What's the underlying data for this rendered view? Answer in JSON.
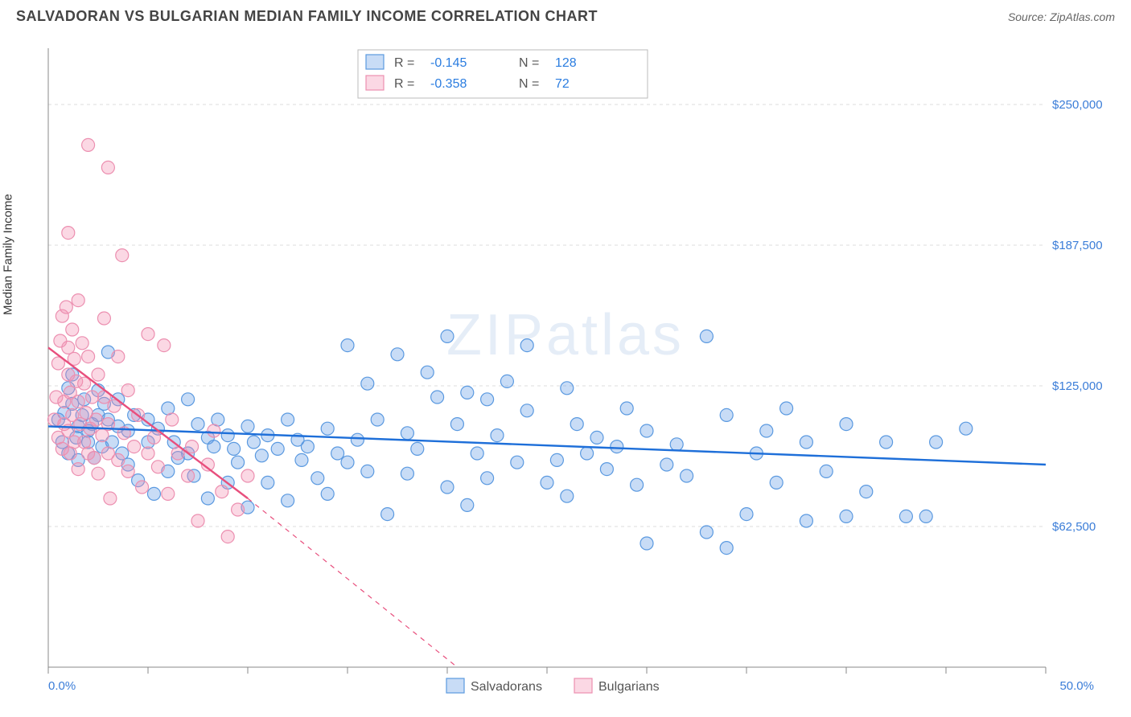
{
  "header": {
    "title": "SALVADORAN VS BULGARIAN MEDIAN FAMILY INCOME CORRELATION CHART",
    "source": "Source: ZipAtlas.com"
  },
  "watermark": "ZIPatlas",
  "chart": {
    "type": "scatter",
    "ylabel": "Median Family Income",
    "xlim": [
      0,
      50
    ],
    "ylim": [
      0,
      275000
    ],
    "x_ticks_minor_step": 5,
    "x_tick_labels": {
      "0": "0.0%",
      "50": "50.0%"
    },
    "y_ticks": [
      62500,
      125000,
      187500,
      250000
    ],
    "y_tick_labels": [
      "$62,500",
      "$125,000",
      "$187,500",
      "$250,000"
    ],
    "grid_color": "#dddddd",
    "axis_color": "#888888",
    "background_color": "#ffffff",
    "tick_label_color": "#3b7dd8",
    "axis_label_color": "#333333",
    "axis_label_fontsize": 15,
    "tick_label_fontsize": 15,
    "marker_radius": 8,
    "marker_stroke_width": 1.2,
    "trendline_width": 2.4,
    "series": [
      {
        "name": "Salvadorans",
        "fill": "rgba(96,156,230,0.35)",
        "stroke": "#5a99e0",
        "trend_stroke": "#1e6fd9",
        "R": "-0.145",
        "N": "128",
        "trendline": {
          "x1": 0,
          "y1": 107000,
          "x2": 50,
          "y2": 90000
        },
        "points": [
          [
            0.5,
            110000
          ],
          [
            0.7,
            100000
          ],
          [
            0.8,
            113000
          ],
          [
            1.0,
            124000
          ],
          [
            1.0,
            95000
          ],
          [
            1.2,
            117000
          ],
          [
            1.2,
            130000
          ],
          [
            1.4,
            102000
          ],
          [
            1.5,
            107000
          ],
          [
            1.5,
            92000
          ],
          [
            1.7,
            112000
          ],
          [
            1.8,
            119000
          ],
          [
            2.0,
            105000
          ],
          [
            2.0,
            100000
          ],
          [
            2.2,
            108000
          ],
          [
            2.3,
            93000
          ],
          [
            2.5,
            112000
          ],
          [
            2.5,
            123000
          ],
          [
            2.7,
            98000
          ],
          [
            2.8,
            117000
          ],
          [
            3.0,
            110000
          ],
          [
            3.0,
            140000
          ],
          [
            3.2,
            100000
          ],
          [
            3.5,
            107000
          ],
          [
            3.5,
            119000
          ],
          [
            3.7,
            95000
          ],
          [
            4.0,
            90000
          ],
          [
            4.0,
            105000
          ],
          [
            4.3,
            112000
          ],
          [
            4.5,
            83000
          ],
          [
            5.0,
            100000
          ],
          [
            5.0,
            110000
          ],
          [
            5.3,
            77000
          ],
          [
            5.5,
            106000
          ],
          [
            6.0,
            115000
          ],
          [
            6.0,
            87000
          ],
          [
            6.3,
            100000
          ],
          [
            6.5,
            93000
          ],
          [
            7.0,
            119000
          ],
          [
            7.0,
            95000
          ],
          [
            7.3,
            85000
          ],
          [
            7.5,
            108000
          ],
          [
            8.0,
            102000
          ],
          [
            8.0,
            75000
          ],
          [
            8.3,
            98000
          ],
          [
            8.5,
            110000
          ],
          [
            9.0,
            103000
          ],
          [
            9.0,
            82000
          ],
          [
            9.3,
            97000
          ],
          [
            9.5,
            91000
          ],
          [
            10.0,
            107000
          ],
          [
            10.0,
            71000
          ],
          [
            10.3,
            100000
          ],
          [
            10.7,
            94000
          ],
          [
            11.0,
            82000
          ],
          [
            11.0,
            103000
          ],
          [
            11.5,
            97000
          ],
          [
            12.0,
            74000
          ],
          [
            12.0,
            110000
          ],
          [
            12.5,
            101000
          ],
          [
            12.7,
            92000
          ],
          [
            13.0,
            98000
          ],
          [
            13.5,
            84000
          ],
          [
            14.0,
            106000
          ],
          [
            14.0,
            77000
          ],
          [
            14.5,
            95000
          ],
          [
            15.0,
            143000
          ],
          [
            15.0,
            91000
          ],
          [
            15.5,
            101000
          ],
          [
            16.0,
            87000
          ],
          [
            16.0,
            126000
          ],
          [
            16.5,
            110000
          ],
          [
            17.0,
            68000
          ],
          [
            17.5,
            139000
          ],
          [
            18.0,
            104000
          ],
          [
            18.0,
            86000
          ],
          [
            18.5,
            97000
          ],
          [
            19.0,
            131000
          ],
          [
            19.5,
            120000
          ],
          [
            20.0,
            80000
          ],
          [
            20.0,
            147000
          ],
          [
            20.5,
            108000
          ],
          [
            21.0,
            122000
          ],
          [
            21.0,
            72000
          ],
          [
            21.5,
            95000
          ],
          [
            22.0,
            119000
          ],
          [
            22.0,
            84000
          ],
          [
            22.5,
            103000
          ],
          [
            23.0,
            127000
          ],
          [
            23.5,
            91000
          ],
          [
            24.0,
            114000
          ],
          [
            24.0,
            143000
          ],
          [
            25.0,
            82000
          ],
          [
            25.5,
            92000
          ],
          [
            26.0,
            124000
          ],
          [
            26.0,
            76000
          ],
          [
            26.5,
            108000
          ],
          [
            27.0,
            95000
          ],
          [
            27.5,
            102000
          ],
          [
            28.0,
            88000
          ],
          [
            28.5,
            98000
          ],
          [
            29.0,
            115000
          ],
          [
            29.5,
            81000
          ],
          [
            30.0,
            105000
          ],
          [
            30.0,
            55000
          ],
          [
            31.0,
            90000
          ],
          [
            31.5,
            99000
          ],
          [
            32.0,
            85000
          ],
          [
            33.0,
            147000
          ],
          [
            33.0,
            60000
          ],
          [
            34.0,
            112000
          ],
          [
            34.0,
            53000
          ],
          [
            35.0,
            68000
          ],
          [
            35.5,
            95000
          ],
          [
            36.0,
            105000
          ],
          [
            36.5,
            82000
          ],
          [
            37.0,
            115000
          ],
          [
            38.0,
            65000
          ],
          [
            38.0,
            100000
          ],
          [
            39.0,
            87000
          ],
          [
            40.0,
            108000
          ],
          [
            40.0,
            67000
          ],
          [
            41.0,
            78000
          ],
          [
            42.0,
            100000
          ],
          [
            43.0,
            67000
          ],
          [
            44.0,
            67000
          ],
          [
            44.5,
            100000
          ],
          [
            46.0,
            106000
          ]
        ]
      },
      {
        "name": "Bulgarians",
        "fill": "rgba(244,143,177,0.35)",
        "stroke": "#ec8fb0",
        "trend_stroke": "#e84f7d",
        "R": "-0.358",
        "N": "72",
        "trendline_solid": {
          "x1": 0,
          "y1": 142000,
          "x2": 10,
          "y2": 75000
        },
        "trendline_dashed": {
          "x1": 10,
          "y1": 75000,
          "x2": 20.5,
          "y2": 0
        },
        "points": [
          [
            0.3,
            110000
          ],
          [
            0.4,
            120000
          ],
          [
            0.5,
            135000
          ],
          [
            0.5,
            102000
          ],
          [
            0.6,
            145000
          ],
          [
            0.7,
            97000
          ],
          [
            0.7,
            156000
          ],
          [
            0.8,
            118000
          ],
          [
            0.8,
            108000
          ],
          [
            0.9,
            160000
          ],
          [
            1.0,
            142000
          ],
          [
            1.0,
            105000
          ],
          [
            1.0,
            130000
          ],
          [
            1.1,
            122000
          ],
          [
            1.1,
            95000
          ],
          [
            1.2,
            150000
          ],
          [
            1.2,
            112000
          ],
          [
            1.3,
            137000
          ],
          [
            1.3,
            100000
          ],
          [
            1.4,
            127000
          ],
          [
            1.5,
            118000
          ],
          [
            1.5,
            88000
          ],
          [
            1.6,
            108000
          ],
          [
            1.7,
            144000
          ],
          [
            1.8,
            100000
          ],
          [
            1.8,
            126000
          ],
          [
            1.9,
            113000
          ],
          [
            2.0,
            95000
          ],
          [
            2.0,
            138000
          ],
          [
            2.1,
            106000
          ],
          [
            2.2,
            120000
          ],
          [
            2.3,
            93000
          ],
          [
            2.4,
            110000
          ],
          [
            2.5,
            130000
          ],
          [
            2.5,
            86000
          ],
          [
            2.7,
            103000
          ],
          [
            2.8,
            120000
          ],
          [
            2.8,
            155000
          ],
          [
            3.0,
            95000
          ],
          [
            3.0,
            108000
          ],
          [
            3.1,
            75000
          ],
          [
            3.3,
            116000
          ],
          [
            3.5,
            92000
          ],
          [
            3.5,
            138000
          ],
          [
            3.8,
            104000
          ],
          [
            4.0,
            87000
          ],
          [
            4.0,
            123000
          ],
          [
            4.3,
            98000
          ],
          [
            4.5,
            112000
          ],
          [
            4.7,
            80000
          ],
          [
            5.0,
            95000
          ],
          [
            5.0,
            148000
          ],
          [
            5.3,
            102000
          ],
          [
            5.5,
            89000
          ],
          [
            5.8,
            143000
          ],
          [
            6.0,
            77000
          ],
          [
            6.2,
            110000
          ],
          [
            6.5,
            95000
          ],
          [
            7.0,
            85000
          ],
          [
            7.2,
            98000
          ],
          [
            7.5,
            65000
          ],
          [
            8.0,
            90000
          ],
          [
            8.3,
            105000
          ],
          [
            8.7,
            78000
          ],
          [
            9.0,
            58000
          ],
          [
            9.5,
            70000
          ],
          [
            10.0,
            85000
          ],
          [
            2.0,
            232000
          ],
          [
            3.0,
            222000
          ],
          [
            1.0,
            193000
          ],
          [
            3.7,
            183000
          ],
          [
            1.5,
            163000
          ]
        ]
      }
    ],
    "legend_top": {
      "border_color": "#bbbbbb",
      "bg": "#ffffff",
      "label_color": "#555555",
      "value_color": "#2b7de0"
    },
    "legend_bottom": {
      "label_color": "#555555"
    }
  }
}
